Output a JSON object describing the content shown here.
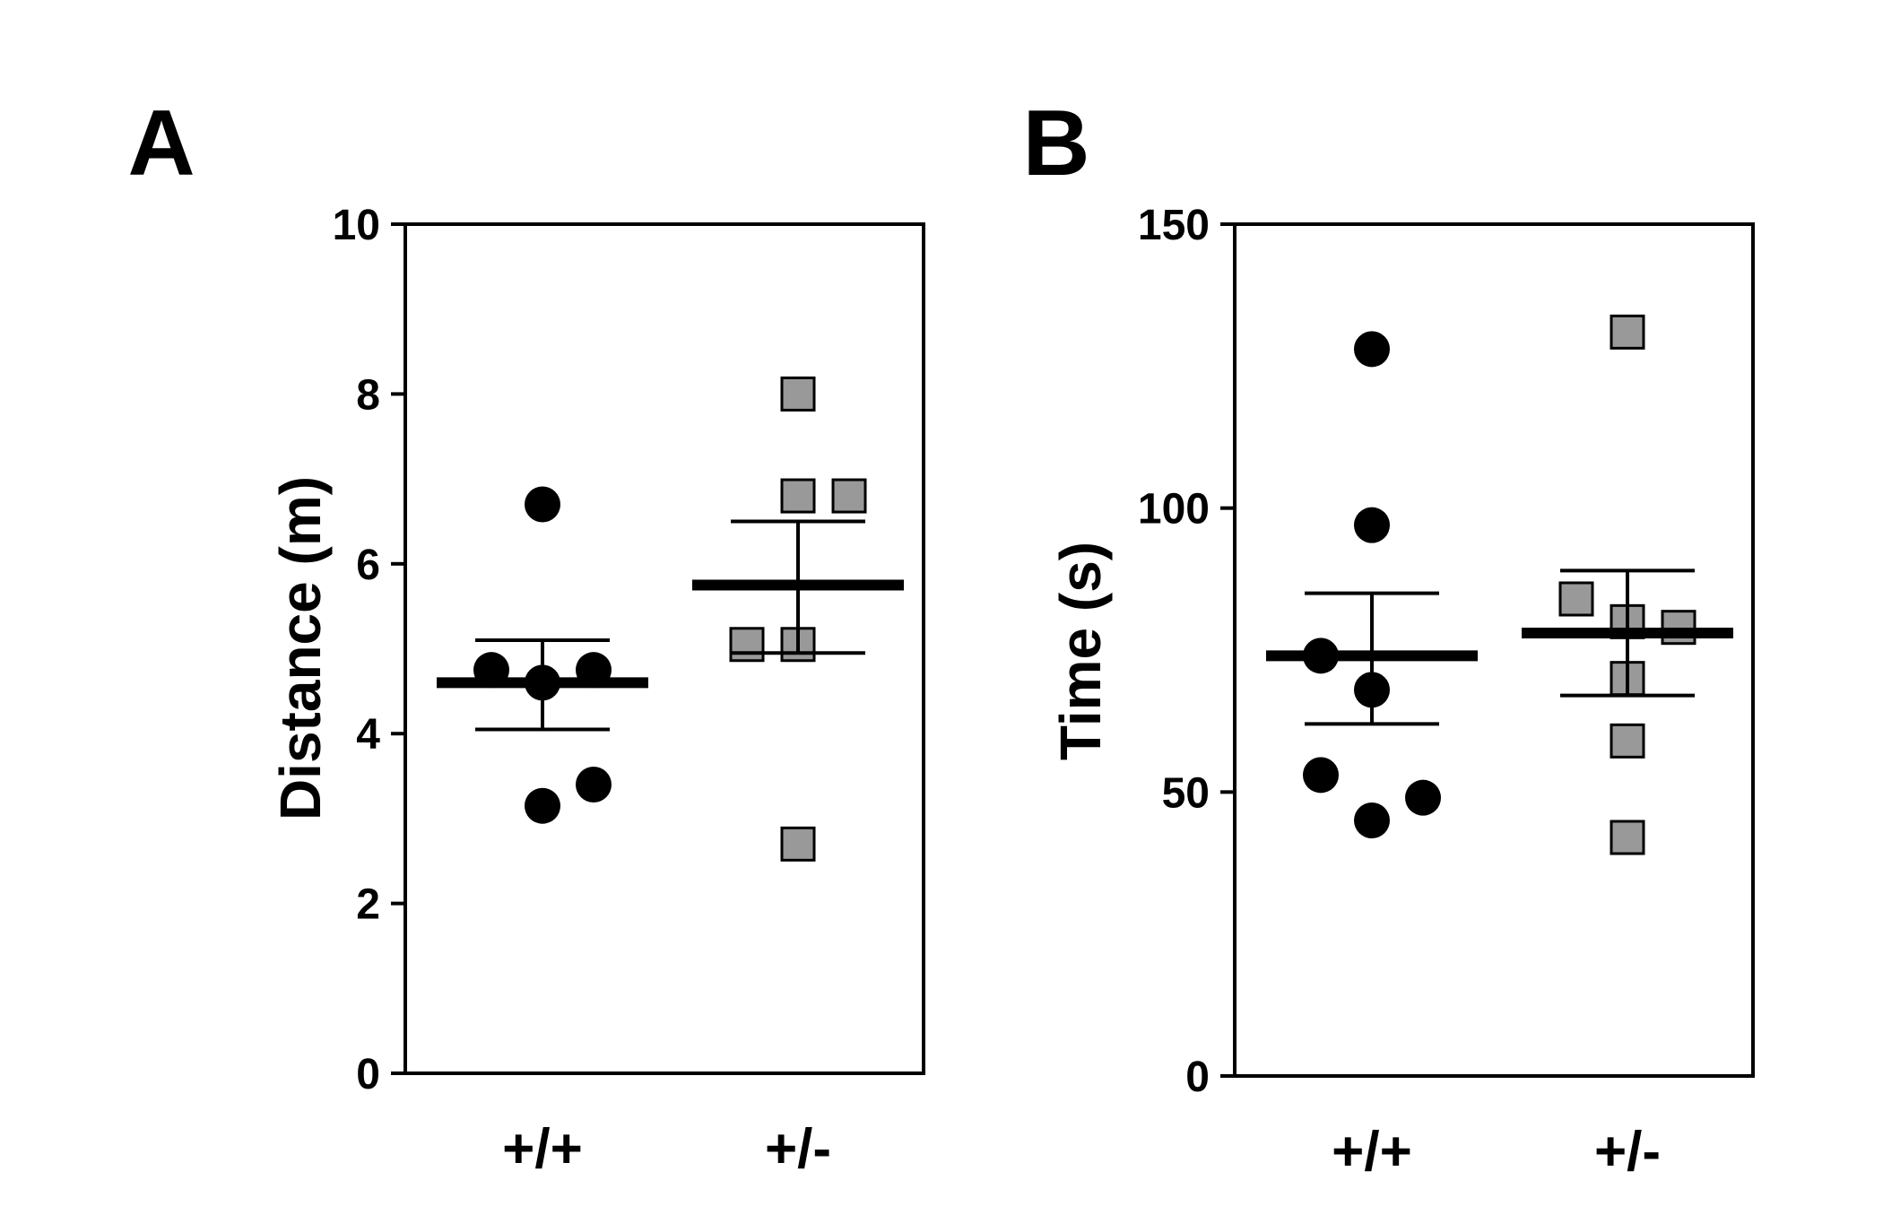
{
  "chart_data": [
    {
      "type": "scatter",
      "panel_label": "A",
      "ylabel": "Distance (m)",
      "ylim": [
        0,
        10
      ],
      "yticks": [
        0,
        2,
        4,
        6,
        8,
        10
      ],
      "ytick_labels": [
        "0",
        "2",
        "4",
        "6",
        "8",
        "10"
      ],
      "categories": [
        "+/+",
        "+/-"
      ],
      "grid": false,
      "series": [
        {
          "category": "+/+",
          "marker": "circle",
          "color": "#000000",
          "points": [
            {
              "offset": 0,
              "y": 6.7
            },
            {
              "offset": -1,
              "y": 4.75
            },
            {
              "offset": 0,
              "y": 4.6
            },
            {
              "offset": 1,
              "y": 4.75
            },
            {
              "offset": 1,
              "y": 3.4
            },
            {
              "offset": 0,
              "y": 3.15
            }
          ],
          "mean": 4.6,
          "sem_upper": 5.1,
          "sem_lower": 4.05
        },
        {
          "category": "+/-",
          "marker": "square",
          "color": "#999999",
          "points": [
            {
              "offset": 0,
              "y": 8.0
            },
            {
              "offset": 0,
              "y": 6.8
            },
            {
              "offset": 1,
              "y": 6.8
            },
            {
              "offset": -1,
              "y": 5.05
            },
            {
              "offset": 0,
              "y": 5.05
            },
            {
              "offset": 0,
              "y": 2.7
            }
          ],
          "mean": 5.75,
          "sem_upper": 6.5,
          "sem_lower": 4.95
        }
      ]
    },
    {
      "type": "scatter",
      "panel_label": "B",
      "ylabel": "Time (s)",
      "ylim": [
        0,
        150
      ],
      "yticks": [
        0,
        50,
        100,
        150
      ],
      "ytick_labels": [
        "0",
        "50",
        "100",
        "150"
      ],
      "categories": [
        "+/+",
        "+/-"
      ],
      "grid": false,
      "series": [
        {
          "category": "+/+",
          "marker": "circle",
          "color": "#000000",
          "points": [
            {
              "offset": 0,
              "y": 128
            },
            {
              "offset": 0,
              "y": 97
            },
            {
              "offset": -1,
              "y": 74
            },
            {
              "offset": 0,
              "y": 68
            },
            {
              "offset": -1,
              "y": 53
            },
            {
              "offset": 1,
              "y": 49
            },
            {
              "offset": 0,
              "y": 45
            }
          ],
          "mean": 74,
          "sem_upper": 85,
          "sem_lower": 62
        },
        {
          "category": "+/-",
          "marker": "square",
          "color": "#999999",
          "points": [
            {
              "offset": 0,
              "y": 131
            },
            {
              "offset": -1,
              "y": 84
            },
            {
              "offset": 0,
              "y": 80
            },
            {
              "offset": 1,
              "y": 79
            },
            {
              "offset": 0,
              "y": 70
            },
            {
              "offset": 0,
              "y": 59
            },
            {
              "offset": 0,
              "y": 42
            }
          ],
          "mean": 78,
          "sem_upper": 89,
          "sem_lower": 67
        }
      ]
    }
  ]
}
